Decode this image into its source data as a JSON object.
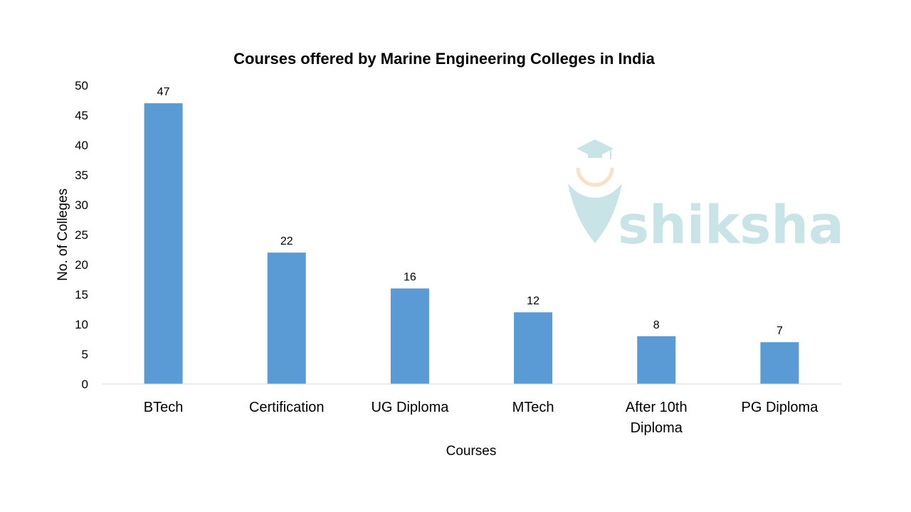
{
  "chart_data": {
    "type": "bar",
    "title": "Courses offered by Marine Engineering Colleges in India",
    "xlabel": "Courses",
    "ylabel": "No. of Colleges",
    "categories": [
      [
        "BTech"
      ],
      [
        "Certification"
      ],
      [
        "UG Diploma"
      ],
      [
        "MTech"
      ],
      [
        "After 10th",
        "Diploma"
      ],
      [
        "PG Diploma"
      ]
    ],
    "values": [
      47,
      22,
      16,
      12,
      8,
      7
    ],
    "ylim": [
      0,
      50
    ],
    "yticks": [
      0,
      5,
      10,
      15,
      20,
      25,
      30,
      35,
      40,
      45,
      50
    ],
    "data_labels": true,
    "grid": false,
    "legend": "none",
    "bar_color": "#5b9bd5"
  },
  "watermark": {
    "text": "shiksha",
    "color": "#a8d4d8",
    "accent": "#f6d9b3",
    "icon": "graduation-cap-pen-icon"
  }
}
